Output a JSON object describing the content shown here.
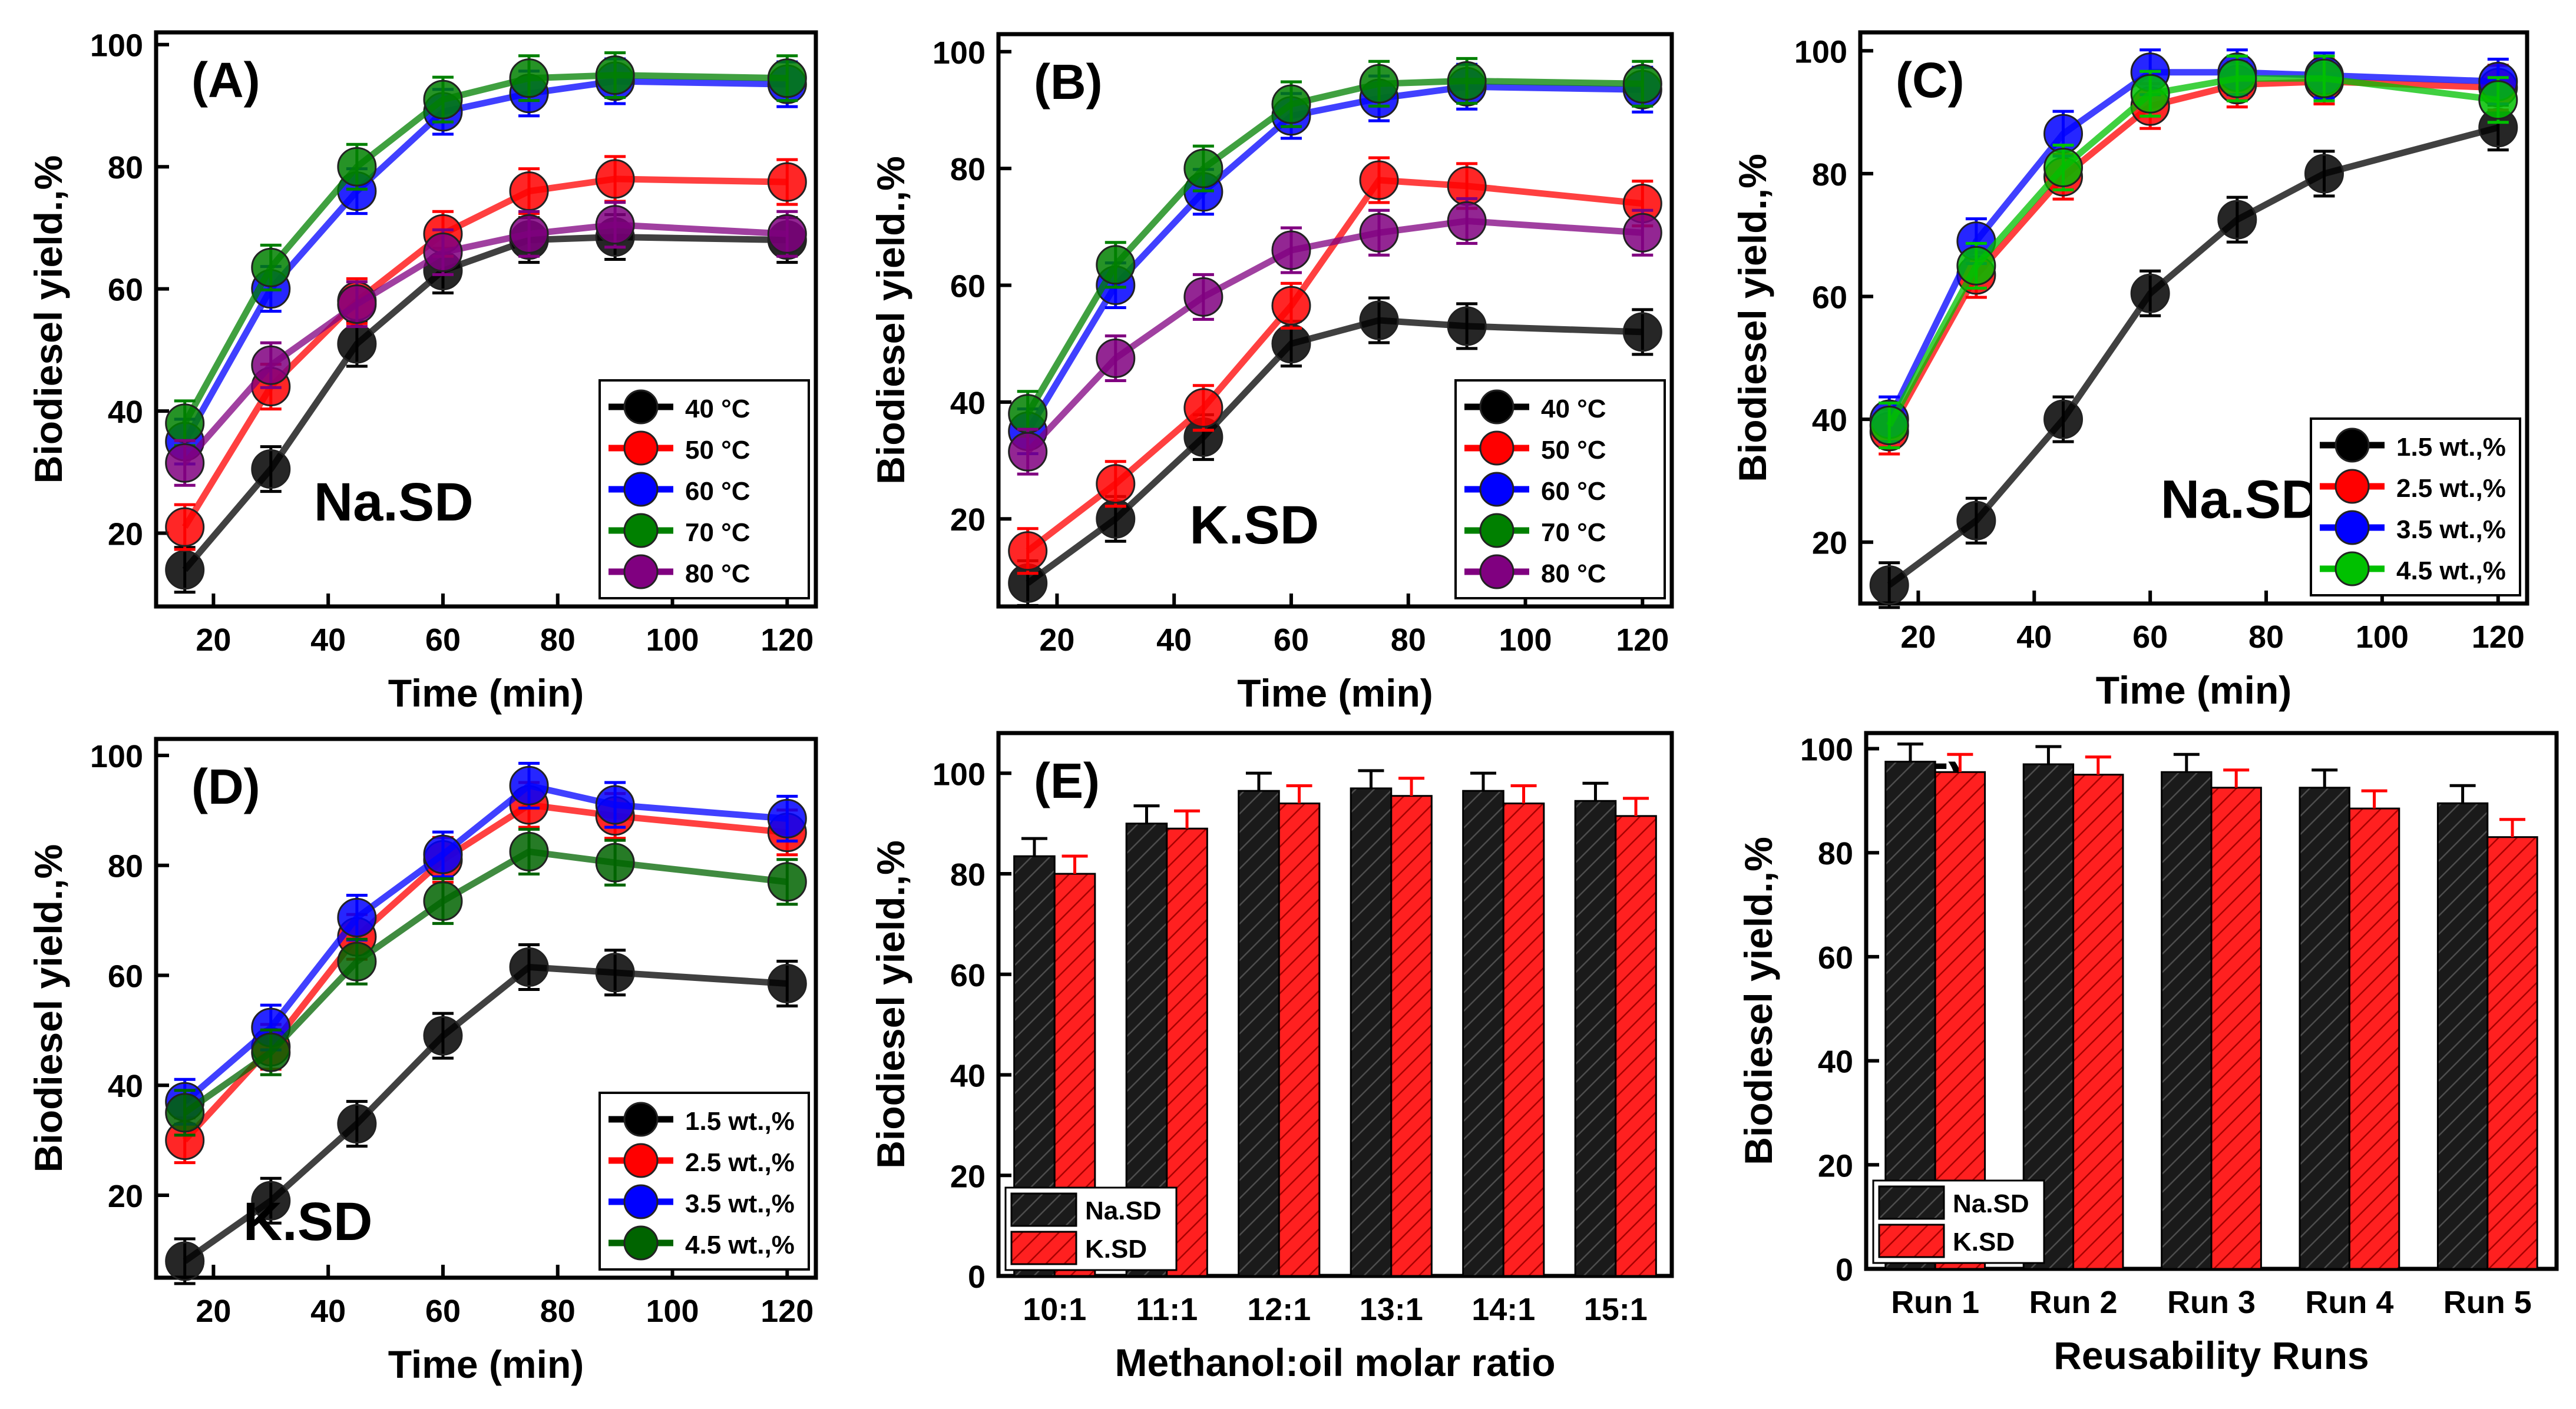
{
  "chart_data": [
    {
      "id": "A",
      "type": "line",
      "panel_label": "(A)",
      "annotation": "Na.SD",
      "xlabel": "Time (min)",
      "ylabel": "Biodiesel yield.,%",
      "xlim": [
        10,
        125
      ],
      "ylim": [
        8,
        102
      ],
      "xticks": [
        "20",
        "40",
        "60",
        "80",
        "100",
        "120"
      ],
      "yticks": [
        "20",
        "40",
        "60",
        "80",
        "100"
      ],
      "legend": "bottom-right",
      "x": [
        15,
        30,
        45,
        60,
        75,
        90,
        120
      ],
      "series": [
        {
          "name": "40 °C",
          "color": "#000000",
          "values": [
            14,
            30.5,
            51,
            63,
            68,
            68.5,
            68
          ]
        },
        {
          "name": "50 °C",
          "color": "#ff0000",
          "values": [
            21,
            44,
            58,
            69,
            76,
            78,
            77.5
          ]
        },
        {
          "name": "60 °C",
          "color": "#0000ff",
          "values": [
            35,
            60,
            76,
            89,
            92,
            94,
            93.5
          ]
        },
        {
          "name": "70 °C",
          "color": "#008000",
          "values": [
            38,
            63.5,
            80,
            91,
            94.5,
            95,
            94.5
          ]
        },
        {
          "name": "80 °C",
          "color": "#800080",
          "values": [
            31.5,
            47.5,
            57.5,
            66,
            69,
            70.5,
            69
          ]
        }
      ]
    },
    {
      "id": "B",
      "type": "line",
      "panel_label": "(B)",
      "annotation": "K.SD",
      "xlabel": "Time (min)",
      "ylabel": "Biodiesel yield.,%",
      "xlim": [
        10,
        125
      ],
      "ylim": [
        5,
        103
      ],
      "xticks": [
        "20",
        "40",
        "60",
        "80",
        "100",
        "120"
      ],
      "yticks": [
        "20",
        "40",
        "60",
        "80",
        "100"
      ],
      "legend": "bottom-right",
      "x": [
        15,
        30,
        45,
        60,
        75,
        90,
        120
      ],
      "series": [
        {
          "name": "40 °C",
          "color": "#000000",
          "values": [
            9,
            20,
            34,
            50,
            54,
            53,
            52
          ]
        },
        {
          "name": "50 °C",
          "color": "#ff0000",
          "values": [
            14.5,
            26,
            39,
            56.5,
            78,
            77,
            74
          ]
        },
        {
          "name": "60 °C",
          "color": "#0000ff",
          "values": [
            35,
            60,
            76,
            89,
            92,
            94,
            93.5
          ]
        },
        {
          "name": "70 °C",
          "color": "#008000",
          "values": [
            38,
            63.5,
            80,
            91,
            94.5,
            95,
            94.5
          ]
        },
        {
          "name": "80 °C",
          "color": "#800080",
          "values": [
            31.5,
            47.5,
            58,
            66,
            69,
            71,
            69
          ]
        }
      ]
    },
    {
      "id": "C",
      "type": "line",
      "panel_label": "(C)",
      "annotation": "Na.SD",
      "xlabel": "Time (min)",
      "ylabel": "Biodiesel yield.,%",
      "xlim": [
        10,
        125
      ],
      "ylim": [
        10,
        103
      ],
      "xticks": [
        "20",
        "40",
        "60",
        "80",
        "100",
        "120"
      ],
      "yticks": [
        "20",
        "40",
        "60",
        "80",
        "100"
      ],
      "legend": "bottom-right",
      "x": [
        15,
        30,
        45,
        60,
        75,
        90,
        120
      ],
      "series": [
        {
          "name": "1.5 wt.,%",
          "color": "#000000",
          "values": [
            13,
            23.5,
            40,
            60.5,
            72.5,
            80,
            87.5
          ]
        },
        {
          "name": "2.5 wt.,%",
          "color": "#ff0000",
          "values": [
            38,
            63.5,
            79.5,
            91,
            94.5,
            95,
            94
          ]
        },
        {
          "name": "3.5 wt.,%",
          "color": "#0000ff",
          "values": [
            40,
            69,
            86.5,
            96.5,
            96.5,
            96,
            95
          ]
        },
        {
          "name": "4.5 wt.,%",
          "color": "#00c000",
          "values": [
            39,
            65,
            81,
            93,
            95.5,
            95.5,
            92
          ]
        }
      ]
    },
    {
      "id": "D",
      "type": "line",
      "panel_label": "(D)",
      "annotation": "K.SD",
      "xlabel": "Time (min)",
      "ylabel": "Biodiesel yield.,%",
      "xlim": [
        10,
        125
      ],
      "ylim": [
        5,
        103
      ],
      "xticks": [
        "20",
        "40",
        "60",
        "80",
        "100",
        "120"
      ],
      "yticks": [
        "20",
        "40",
        "60",
        "80",
        "100"
      ],
      "legend": "bottom-right",
      "x": [
        15,
        30,
        45,
        60,
        75,
        90,
        120
      ],
      "series": [
        {
          "name": "1.5 wt.,%",
          "color": "#000000",
          "values": [
            8,
            19,
            33,
            49,
            61.5,
            60.5,
            58.5
          ]
        },
        {
          "name": "2.5 wt.,%",
          "color": "#ff0000",
          "values": [
            30,
            47,
            67,
            81,
            91,
            89,
            86
          ]
        },
        {
          "name": "3.5 wt.,%",
          "color": "#0000ff",
          "values": [
            37,
            50.5,
            70.5,
            82,
            94.5,
            91,
            88.5
          ]
        },
        {
          "name": "4.5 wt.,%",
          "color": "#006400",
          "values": [
            35,
            46,
            62.5,
            73.5,
            82.5,
            80.5,
            77
          ]
        }
      ]
    },
    {
      "id": "E",
      "type": "bar",
      "panel_label": "(E)",
      "xlabel": "Methanol:oil molar ratio",
      "ylabel": "Biodiesel yield.,%",
      "ylim": [
        0,
        108
      ],
      "yticks": [
        "0",
        "20",
        "40",
        "60",
        "80",
        "100"
      ],
      "legend": "bottom-left",
      "categories": [
        "10:1",
        "11:1",
        "12:1",
        "13:1",
        "14:1",
        "15:1"
      ],
      "series": [
        {
          "name": "Na.SD",
          "color": "#000000",
          "values": [
            83.5,
            90,
            96.5,
            97,
            96.5,
            94.5
          ]
        },
        {
          "name": "K.SD",
          "color": "#ff0000",
          "values": [
            80,
            89,
            94,
            95.5,
            94,
            91.5
          ]
        }
      ]
    },
    {
      "id": "F",
      "type": "bar",
      "panel_label": "(F)",
      "xlabel": "Reusability Runs",
      "ylabel": "Biodiesel yield.,%",
      "ylim": [
        0,
        103
      ],
      "yticks": [
        "0",
        "20",
        "40",
        "60",
        "80",
        "100"
      ],
      "legend": "bottom-left",
      "categories": [
        "Run 1",
        "Run 2",
        "Run 3",
        "Run 4",
        "Run 5"
      ],
      "series": [
        {
          "name": "Na.SD",
          "color": "#000000",
          "values": [
            97.5,
            97,
            95.5,
            92.5,
            89.5
          ]
        },
        {
          "name": "K.SD",
          "color": "#ff0000",
          "values": [
            95.5,
            95,
            92.5,
            88.5,
            83
          ]
        }
      ]
    }
  ]
}
